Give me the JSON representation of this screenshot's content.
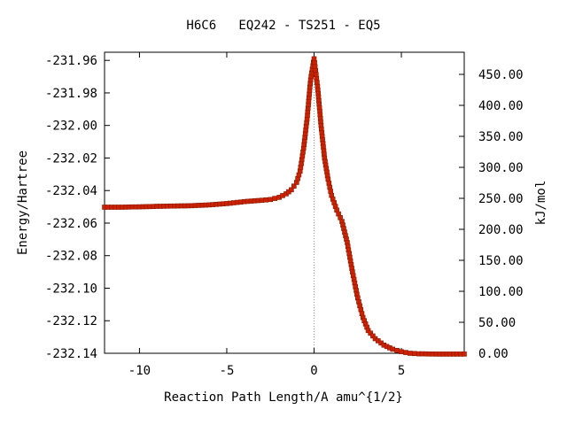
{
  "chart_data": {
    "type": "scatter",
    "title": "H6C6   EQ242 - TS251 - EQ5",
    "xlabel": "Reaction Path Length/A amu^{1/2}",
    "ylabel_left": "Energy/Hartree",
    "ylabel_right": "kJ/mol",
    "xlim": [
      -12.0,
      8.6
    ],
    "ylim": [
      -232.14,
      -231.955
    ],
    "ylim_right_kjmol": [
      0,
      485.7
    ],
    "x_ticks": [
      -10,
      -5,
      0,
      5
    ],
    "x_tick_labels": [
      "-10",
      "-5",
      "0",
      "5"
    ],
    "y_ticks": [
      -231.96,
      -231.98,
      -232.0,
      -232.02,
      -232.04,
      -232.06,
      -232.08,
      -232.1,
      -232.12,
      -232.14
    ],
    "y_tick_labels": [
      "-231.96",
      "-231.98",
      "-232.00",
      "-232.02",
      "-232.04",
      "-232.06",
      "-232.08",
      "-232.10",
      "-232.12",
      "-232.14"
    ],
    "y2_ticks": [
      0,
      50,
      100,
      150,
      200,
      250,
      300,
      350,
      400,
      450
    ],
    "y2_tick_labels": [
      "0.00",
      "50.00",
      "100.00",
      "150.00",
      "200.00",
      "250.00",
      "300.00",
      "350.00",
      "400.00",
      "450.00"
    ],
    "grid": false,
    "ts_marker_x": 0,
    "colors": {
      "line": "#2ca02c",
      "marker": "#cc2200",
      "marker_edge": "#8b1a00",
      "ts_line": "#999999",
      "axis": "#000000"
    },
    "series": [
      {
        "x": [
          -12.0,
          -11.0,
          -10.0,
          -9.0,
          -8.0,
          -7.0,
          -6.0,
          -5.0,
          -4.0,
          -3.0,
          -2.5,
          -2.0,
          -1.6,
          -1.3,
          -1.0,
          -0.8,
          -0.6,
          -0.4,
          -0.2,
          0.0,
          0.2,
          0.4,
          0.6,
          0.8,
          1.0,
          1.3,
          1.6,
          1.9,
          2.2,
          2.5,
          2.8,
          3.1,
          3.5,
          4.0,
          4.5,
          5.0,
          5.5,
          6.0,
          7.0,
          8.0,
          8.6
        ],
        "y": [
          -232.0502,
          -232.0502,
          -232.05,
          -232.0497,
          -232.0495,
          -232.0493,
          -232.0488,
          -232.048,
          -232.0468,
          -232.046,
          -232.0455,
          -232.0442,
          -232.042,
          -232.0395,
          -232.035,
          -232.028,
          -232.014,
          -231.996,
          -231.972,
          -231.959,
          -231.976,
          -232.0,
          -232.02,
          -232.033,
          -232.043,
          -232.052,
          -232.059,
          -232.072,
          -232.09,
          -232.106,
          -232.118,
          -232.126,
          -232.131,
          -232.135,
          -232.1375,
          -232.139,
          -232.14,
          -232.1403,
          -232.1405,
          -232.1405,
          -232.1405
        ]
      }
    ]
  }
}
